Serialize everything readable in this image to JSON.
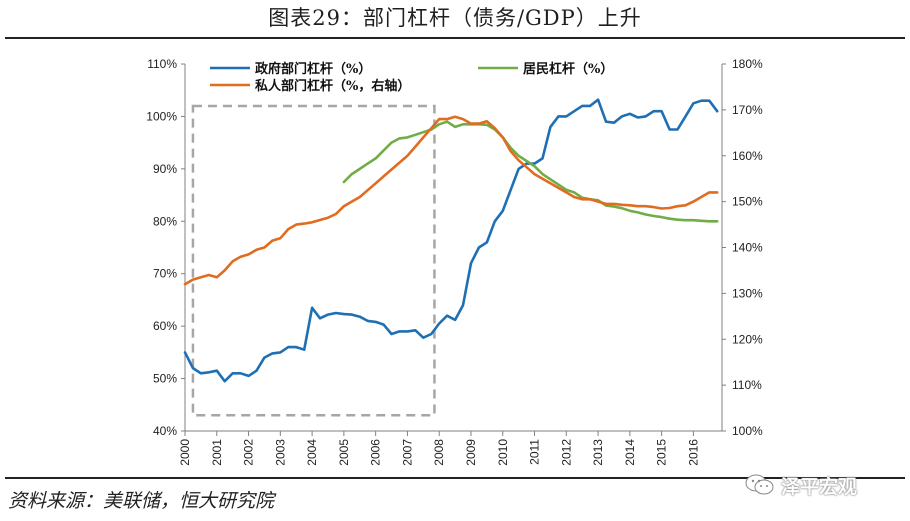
{
  "title": "图表29：部门杠杆（债务/GDP）上升",
  "source": "资料来源：美联储，恒大研究院",
  "watermark": {
    "text": "泽平宏观",
    "icon": "wechat-icon"
  },
  "chart_data": {
    "type": "line",
    "title": "图表29：部门杠杆（债务/GDP）上升",
    "x_range": [
      2000,
      2016.75
    ],
    "x_ticks": [
      "2000",
      "2001",
      "2002",
      "2003",
      "2004",
      "2005",
      "2006",
      "2007",
      "2008",
      "2009",
      "2010",
      "2011",
      "2012",
      "2013",
      "2014",
      "2015",
      "2016"
    ],
    "y_left": {
      "ylim": [
        40,
        110
      ],
      "ticks": [
        "40%",
        "50%",
        "60%",
        "70%",
        "80%",
        "90%",
        "100%",
        "110%"
      ]
    },
    "y_right": {
      "ylim": [
        100,
        180
      ],
      "ticks": [
        "100%",
        "110%",
        "120%",
        "130%",
        "140%",
        "150%",
        "160%",
        "170%",
        "180%"
      ]
    },
    "highlight_box": {
      "x_from": 2000.25,
      "x_to": 2007.85,
      "y_from": 43,
      "y_to": 102,
      "style": "dashed",
      "color": "#a6a6a6"
    },
    "series": [
      {
        "name": "政府部门杠杆（%）",
        "axis": "left",
        "color": "#1f6fb5",
        "points": [
          [
            2000,
            55
          ],
          [
            2000.25,
            52
          ],
          [
            2000.5,
            51
          ],
          [
            2000.75,
            51.2
          ],
          [
            2001,
            51.5
          ],
          [
            2001.25,
            49.5
          ],
          [
            2001.5,
            51
          ],
          [
            2001.75,
            51
          ],
          [
            2002,
            50.5
          ],
          [
            2002.25,
            51.5
          ],
          [
            2002.5,
            54
          ],
          [
            2002.75,
            54.8
          ],
          [
            2003,
            55
          ],
          [
            2003.25,
            56
          ],
          [
            2003.5,
            56
          ],
          [
            2003.75,
            55.5
          ],
          [
            2004,
            63.5
          ],
          [
            2004.25,
            61.5
          ],
          [
            2004.5,
            62.2
          ],
          [
            2004.75,
            62.5
          ],
          [
            2005,
            62.3
          ],
          [
            2005.25,
            62.2
          ],
          [
            2005.5,
            61.8
          ],
          [
            2005.75,
            61
          ],
          [
            2006,
            60.8
          ],
          [
            2006.25,
            60.3
          ],
          [
            2006.5,
            58.5
          ],
          [
            2006.75,
            59
          ],
          [
            2007,
            59
          ],
          [
            2007.25,
            59.2
          ],
          [
            2007.5,
            57.8
          ],
          [
            2007.75,
            58.5
          ],
          [
            2008,
            60.5
          ],
          [
            2008.25,
            62
          ],
          [
            2008.5,
            61.2
          ],
          [
            2008.75,
            64
          ],
          [
            2009,
            72
          ],
          [
            2009.25,
            75
          ],
          [
            2009.5,
            76
          ],
          [
            2009.75,
            80
          ],
          [
            2010,
            82
          ],
          [
            2010.25,
            86
          ],
          [
            2010.5,
            90
          ],
          [
            2010.75,
            91
          ],
          [
            2011,
            91
          ],
          [
            2011.25,
            92
          ],
          [
            2011.5,
            98
          ],
          [
            2011.75,
            100
          ],
          [
            2012,
            100
          ],
          [
            2012.25,
            101
          ],
          [
            2012.5,
            102
          ],
          [
            2012.75,
            102
          ],
          [
            2013,
            103.2
          ],
          [
            2013.25,
            99
          ],
          [
            2013.5,
            98.8
          ],
          [
            2013.75,
            100
          ],
          [
            2014,
            100.5
          ],
          [
            2014.25,
            99.8
          ],
          [
            2014.5,
            100
          ],
          [
            2014.75,
            101
          ],
          [
            2015,
            101
          ],
          [
            2015.25,
            97.5
          ],
          [
            2015.5,
            97.5
          ],
          [
            2015.75,
            100
          ],
          [
            2016,
            102.5
          ],
          [
            2016.25,
            103
          ],
          [
            2016.5,
            103
          ],
          [
            2016.75,
            101
          ]
        ]
      },
      {
        "name": "居民杠杆（%）",
        "axis": "left",
        "color": "#70ad47",
        "points": [
          [
            2005,
            87.5
          ],
          [
            2005.25,
            89
          ],
          [
            2005.5,
            90
          ],
          [
            2005.75,
            91
          ],
          [
            2006,
            92
          ],
          [
            2006.25,
            93.5
          ],
          [
            2006.5,
            95
          ],
          [
            2006.75,
            95.8
          ],
          [
            2007,
            96
          ],
          [
            2007.25,
            96.5
          ],
          [
            2007.5,
            97
          ],
          [
            2007.75,
            97.5
          ],
          [
            2008,
            98.5
          ],
          [
            2008.25,
            99
          ],
          [
            2008.5,
            98
          ],
          [
            2008.75,
            98.5
          ],
          [
            2009,
            98.5
          ],
          [
            2009.25,
            98.5
          ],
          [
            2009.5,
            98.4
          ],
          [
            2009.75,
            97.5
          ],
          [
            2010,
            96
          ],
          [
            2010.25,
            94
          ],
          [
            2010.5,
            92.5
          ],
          [
            2010.75,
            91.5
          ],
          [
            2011,
            90.5
          ],
          [
            2011.25,
            89
          ],
          [
            2011.5,
            88
          ],
          [
            2011.75,
            87
          ],
          [
            2012,
            86
          ],
          [
            2012.25,
            85.5
          ],
          [
            2012.5,
            84.5
          ],
          [
            2012.75,
            84.2
          ],
          [
            2013,
            84
          ],
          [
            2013.25,
            83
          ],
          [
            2013.5,
            82.8
          ],
          [
            2013.75,
            82.5
          ],
          [
            2014,
            82
          ],
          [
            2014.25,
            81.7
          ],
          [
            2014.5,
            81.3
          ],
          [
            2014.75,
            81
          ],
          [
            2015,
            80.8
          ],
          [
            2015.25,
            80.5
          ],
          [
            2015.5,
            80.3
          ],
          [
            2015.75,
            80.2
          ],
          [
            2016,
            80.2
          ],
          [
            2016.25,
            80.1
          ],
          [
            2016.5,
            80
          ],
          [
            2016.75,
            80
          ]
        ]
      },
      {
        "name": "私人部门杠杆（%，右轴）",
        "axis": "right",
        "color": "#e06c1f",
        "points": [
          [
            2000,
            132
          ],
          [
            2000.25,
            133
          ],
          [
            2000.5,
            133.5
          ],
          [
            2000.75,
            134
          ],
          [
            2001,
            133.5
          ],
          [
            2001.25,
            135
          ],
          [
            2001.5,
            137
          ],
          [
            2001.75,
            138
          ],
          [
            2002,
            138.5
          ],
          [
            2002.25,
            139.5
          ],
          [
            2002.5,
            140
          ],
          [
            2002.75,
            141.5
          ],
          [
            2003,
            142
          ],
          [
            2003.25,
            144
          ],
          [
            2003.5,
            145
          ],
          [
            2003.75,
            145.2
          ],
          [
            2004,
            145.5
          ],
          [
            2004.25,
            146
          ],
          [
            2004.5,
            146.5
          ],
          [
            2004.75,
            147.3
          ],
          [
            2005,
            149
          ],
          [
            2005.25,
            150
          ],
          [
            2005.5,
            151
          ],
          [
            2005.75,
            152.5
          ],
          [
            2006,
            154
          ],
          [
            2006.25,
            155.5
          ],
          [
            2006.5,
            157
          ],
          [
            2006.75,
            158.5
          ],
          [
            2007,
            160
          ],
          [
            2007.25,
            162
          ],
          [
            2007.5,
            164
          ],
          [
            2007.75,
            166
          ],
          [
            2008,
            168
          ],
          [
            2008.25,
            168
          ],
          [
            2008.5,
            168.5
          ],
          [
            2008.75,
            168
          ],
          [
            2009,
            167
          ],
          [
            2009.25,
            167
          ],
          [
            2009.5,
            167.5
          ],
          [
            2009.75,
            166
          ],
          [
            2010,
            164
          ],
          [
            2010.25,
            161
          ],
          [
            2010.5,
            159
          ],
          [
            2010.75,
            157.5
          ],
          [
            2011,
            156
          ],
          [
            2011.25,
            155
          ],
          [
            2011.5,
            154
          ],
          [
            2011.75,
            153
          ],
          [
            2012,
            152
          ],
          [
            2012.25,
            151
          ],
          [
            2012.5,
            150.5
          ],
          [
            2012.75,
            150.5
          ],
          [
            2013,
            150
          ],
          [
            2013.25,
            149.5
          ],
          [
            2013.5,
            149.5
          ],
          [
            2013.75,
            149.3
          ],
          [
            2014,
            149.2
          ],
          [
            2014.25,
            149
          ],
          [
            2014.5,
            149
          ],
          [
            2014.75,
            148.8
          ],
          [
            2015,
            148.5
          ],
          [
            2015.25,
            148.6
          ],
          [
            2015.5,
            149
          ],
          [
            2015.75,
            149.2
          ],
          [
            2016,
            150
          ],
          [
            2016.25,
            151
          ],
          [
            2016.5,
            152
          ],
          [
            2016.75,
            152
          ]
        ]
      }
    ],
    "legend": {
      "placement": "top",
      "entries": [
        {
          "label": "政府部门杠杆（%）",
          "color": "#1f6fb5"
        },
        {
          "label": "居民杠杆（%）",
          "color": "#70ad47"
        },
        {
          "label": "私人部门杠杆（%，右轴）",
          "color": "#e06c1f"
        }
      ]
    }
  }
}
